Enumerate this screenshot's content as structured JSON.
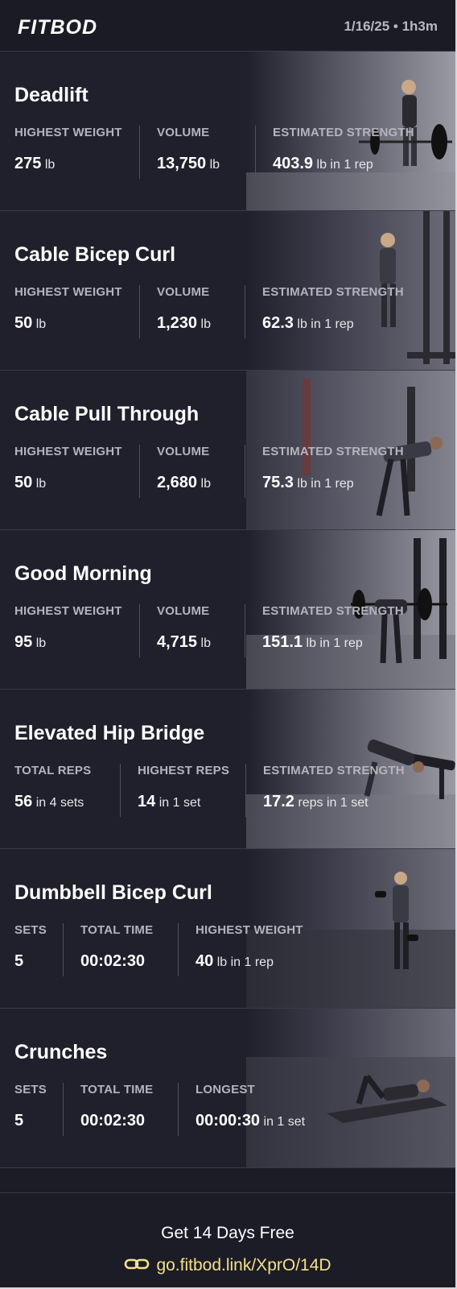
{
  "header": {
    "logo": "FITBOD",
    "date_duration": "1/16/25 • 1h3m"
  },
  "cards": [
    {
      "title": "Deadlift",
      "stats": [
        {
          "label": "HIGHEST WEIGHT",
          "value": "275",
          "unit": "lb"
        },
        {
          "label": "VOLUME",
          "value": "13,750",
          "unit": "lb"
        },
        {
          "label": "ESTIMATED STRENGTH",
          "value": "403.9",
          "unit": "lb in 1 rep"
        }
      ]
    },
    {
      "title": "Cable Bicep Curl",
      "stats": [
        {
          "label": "HIGHEST WEIGHT",
          "value": "50",
          "unit": "lb"
        },
        {
          "label": "VOLUME",
          "value": "1,230",
          "unit": "lb"
        },
        {
          "label": "ESTIMATED STRENGTH",
          "value": "62.3",
          "unit": "lb in 1 rep"
        }
      ]
    },
    {
      "title": "Cable Pull Through",
      "stats": [
        {
          "label": "HIGHEST WEIGHT",
          "value": "50",
          "unit": "lb"
        },
        {
          "label": "VOLUME",
          "value": "2,680",
          "unit": "lb"
        },
        {
          "label": "ESTIMATED STRENGTH",
          "value": "75.3",
          "unit": "lb in 1 rep"
        }
      ]
    },
    {
      "title": "Good Morning",
      "stats": [
        {
          "label": "HIGHEST WEIGHT",
          "value": "95",
          "unit": "lb"
        },
        {
          "label": "VOLUME",
          "value": "4,715",
          "unit": "lb"
        },
        {
          "label": "ESTIMATED STRENGTH",
          "value": "151.1",
          "unit": "lb in 1 rep"
        }
      ]
    },
    {
      "title": "Elevated Hip Bridge",
      "stats": [
        {
          "label": "TOTAL REPS",
          "value": "56",
          "unit": "in 4 sets"
        },
        {
          "label": "HIGHEST REPS",
          "value": "14",
          "unit": "in 1 set"
        },
        {
          "label": "ESTIMATED STRENGTH",
          "value": "17.2",
          "unit": "reps in 1 set"
        }
      ]
    },
    {
      "title": "Dumbbell Bicep Curl",
      "stats": [
        {
          "label": "SETS",
          "value": "5",
          "unit": ""
        },
        {
          "label": "TOTAL TIME",
          "value": "00:02:30",
          "unit": ""
        },
        {
          "label": "HIGHEST WEIGHT",
          "value": "40",
          "unit": "lb in 1 rep"
        }
      ]
    },
    {
      "title": "Crunches",
      "stats": [
        {
          "label": "SETS",
          "value": "5",
          "unit": ""
        },
        {
          "label": "TOTAL TIME",
          "value": "00:02:30",
          "unit": ""
        },
        {
          "label": "LONGEST",
          "value": "00:00:30",
          "unit": "in 1 set"
        }
      ]
    }
  ],
  "footer": {
    "cta": "Get 14 Days Free",
    "link": "go.fitbod.link/XprO/14D"
  },
  "icons": {
    "exercise_photos": [
      "deadlift-photo",
      "cable-bicep-curl-photo",
      "cable-pull-through-photo",
      "good-morning-photo",
      "elevated-hip-bridge-photo",
      "dumbbell-bicep-curl-photo",
      "crunches-photo"
    ],
    "link": "link-icon"
  },
  "colors": {
    "background": "#1c1c27",
    "label": "#b4b4be",
    "link": "#f3e08a",
    "divider": "#50505e"
  }
}
